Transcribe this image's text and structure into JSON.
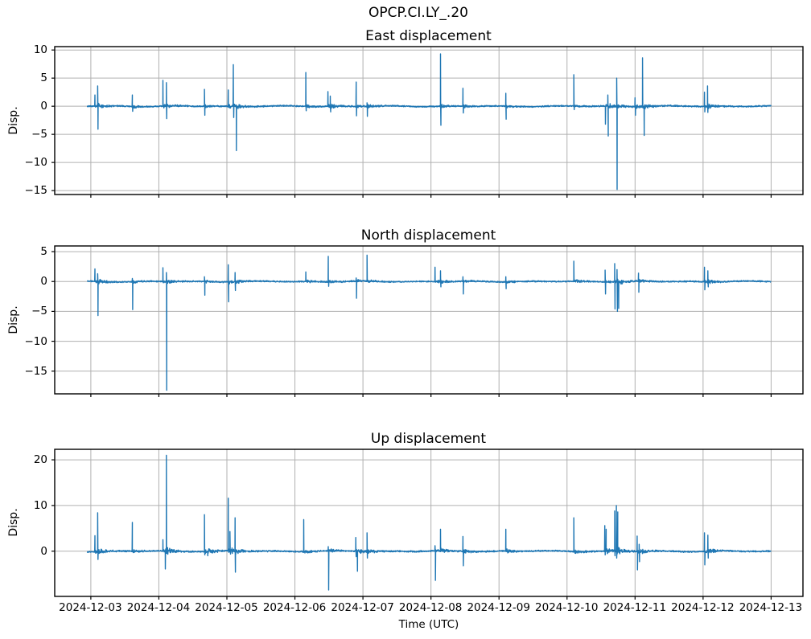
{
  "figure": {
    "suptitle": "OPCP.CI.LY_.20",
    "xlabel": "Time (UTC)",
    "background_color": "#ffffff",
    "line_color": "#1f77b4",
    "grid_color": "#b0b0b0",
    "frame_color": "#000000",
    "text_color": "#000000"
  },
  "x_axis": {
    "label": "Time (UTC)",
    "tick_labels": [
      "2024-12-03",
      "2024-12-04",
      "2024-12-05",
      "2024-12-06",
      "2024-12-07",
      "2024-12-08",
      "2024-12-09",
      "2024-12-10",
      "2024-12-11",
      "2024-12-12",
      "2024-12-13"
    ],
    "tick_days": [
      0,
      1,
      2,
      3,
      4,
      5,
      6,
      7,
      8,
      9,
      10
    ]
  },
  "chart_data": [
    {
      "type": "line",
      "title": "East displacement",
      "ylabel": "Disp.",
      "x_unit": "days since 2024-12-03 00:00 UTC",
      "x_start_day": -0.055,
      "x_end_day": 10.0,
      "xlim": [
        -0.531,
        10.468
      ],
      "ylim": [
        -15.7,
        10.6
      ],
      "yticks": [
        {
          "v": 10,
          "label": "10"
        },
        {
          "v": 5,
          "label": "5"
        },
        {
          "v": 0,
          "label": "0"
        },
        {
          "v": -5,
          "label": "−5"
        },
        {
          "v": -10,
          "label": "−10"
        },
        {
          "v": -15,
          "label": "−15"
        }
      ],
      "noise_amp": 0.13,
      "seed": 3,
      "spikes": [
        [
          0.06,
          2.0,
          0
        ],
        [
          0.1,
          3.6,
          -4.1
        ],
        [
          0.61,
          2.0,
          -0.9
        ],
        [
          1.06,
          4.6,
          0
        ],
        [
          1.11,
          4.2,
          -2.2
        ],
        [
          1.67,
          3.0,
          -1.6
        ],
        [
          2.02,
          2.9,
          0
        ],
        [
          2.095,
          7.4,
          -2.0
        ],
        [
          2.14,
          0,
          -7.9
        ],
        [
          3.16,
          6.0,
          -0.8
        ],
        [
          3.485,
          2.6,
          0
        ],
        [
          3.52,
          1.8,
          -1.0
        ],
        [
          3.9,
          4.3,
          -1.7
        ],
        [
          4.06,
          0.6,
          -1.8
        ],
        [
          5.14,
          9.3,
          -3.4
        ],
        [
          5.47,
          3.2,
          -1.2
        ],
        [
          6.1,
          2.3,
          -2.3
        ],
        [
          7.1,
          5.6,
          -0.6
        ],
        [
          7.565,
          0,
          -3.2
        ],
        [
          7.6,
          2.0,
          -5.3
        ],
        [
          7.73,
          5.0,
          -14.8
        ],
        [
          8.0,
          1.5,
          -1.6
        ],
        [
          8.11,
          8.6,
          0
        ],
        [
          8.135,
          0,
          -5.2
        ],
        [
          9.02,
          2.5,
          -1.0
        ],
        [
          9.065,
          3.6,
          -1.1
        ]
      ]
    },
    {
      "type": "line",
      "title": "North displacement",
      "ylabel": "Disp.",
      "x_unit": "days since 2024-12-03 00:00 UTC",
      "x_start_day": -0.055,
      "x_end_day": 10.0,
      "xlim": [
        -0.531,
        10.468
      ],
      "ylim": [
        -18.8,
        5.95
      ],
      "yticks": [
        {
          "v": 5,
          "label": "5"
        },
        {
          "v": 0,
          "label": "0"
        },
        {
          "v": -5,
          "label": "−5"
        },
        {
          "v": -10,
          "label": "−10"
        },
        {
          "v": -15,
          "label": "−15"
        }
      ],
      "noise_amp": 0.12,
      "seed": 11,
      "spikes": [
        [
          0.06,
          2.1,
          0
        ],
        [
          0.1,
          1.3,
          -5.7
        ],
        [
          0.61,
          0.5,
          -4.7
        ],
        [
          1.06,
          2.3,
          0
        ],
        [
          1.11,
          1.5,
          -18.2
        ],
        [
          1.67,
          0.8,
          -2.3
        ],
        [
          2.02,
          2.8,
          -3.4
        ],
        [
          2.12,
          1.5,
          -1.5
        ],
        [
          3.16,
          1.6,
          0
        ],
        [
          3.49,
          4.2,
          -0.8
        ],
        [
          3.9,
          0.6,
          -2.8
        ],
        [
          4.06,
          4.4,
          0
        ],
        [
          5.06,
          2.4,
          0
        ],
        [
          5.14,
          1.8,
          -0.9
        ],
        [
          5.47,
          0.8,
          -2.1
        ],
        [
          6.1,
          0.8,
          -1.2
        ],
        [
          7.1,
          3.4,
          0
        ],
        [
          7.56,
          1.9,
          -2.1
        ],
        [
          7.7,
          3.0,
          -4.6
        ],
        [
          7.735,
          2.0,
          -5.0
        ],
        [
          7.76,
          0,
          -4.5
        ],
        [
          8.05,
          1.4,
          -1.8
        ],
        [
          9.02,
          2.4,
          -1.4
        ],
        [
          9.07,
          1.8,
          -0.9
        ]
      ]
    },
    {
      "type": "line",
      "title": "Up displacement",
      "ylabel": "Disp.",
      "x_unit": "days since 2024-12-03 00:00 UTC",
      "x_start_day": -0.055,
      "x_end_day": 10.0,
      "xlim": [
        -0.531,
        10.468
      ],
      "ylim": [
        -9.9,
        22.3
      ],
      "yticks": [
        {
          "v": 20,
          "label": "20"
        },
        {
          "v": 10,
          "label": "10"
        },
        {
          "v": 0,
          "label": "0"
        }
      ],
      "noise_amp": 0.18,
      "seed": 27,
      "spikes": [
        [
          0.06,
          3.4,
          0
        ],
        [
          0.1,
          8.4,
          -1.8
        ],
        [
          0.61,
          6.3,
          0
        ],
        [
          1.06,
          2.5,
          0
        ],
        [
          1.095,
          0,
          -3.9
        ],
        [
          1.11,
          21.0,
          0
        ],
        [
          1.67,
          8.0,
          -0.8
        ],
        [
          1.72,
          0,
          -1.0
        ],
        [
          2.02,
          11.6,
          0
        ],
        [
          2.045,
          4.3,
          0
        ],
        [
          2.12,
          7.3,
          -4.6
        ],
        [
          3.13,
          6.9,
          0
        ],
        [
          3.49,
          1.0,
          -8.5
        ],
        [
          3.895,
          3.0,
          -1.2
        ],
        [
          3.92,
          0,
          -4.4
        ],
        [
          4.06,
          4.0,
          -1.5
        ],
        [
          5.06,
          1.2,
          -6.4
        ],
        [
          5.14,
          4.8,
          0
        ],
        [
          5.47,
          3.2,
          -3.2
        ],
        [
          6.1,
          4.8,
          0
        ],
        [
          7.1,
          7.3,
          0
        ],
        [
          7.555,
          5.6,
          -0.8
        ],
        [
          7.575,
          4.8,
          0
        ],
        [
          7.7,
          8.8,
          -1.0
        ],
        [
          7.725,
          10.0,
          -1.5
        ],
        [
          7.745,
          8.6,
          0
        ],
        [
          8.03,
          3.3,
          -4.1
        ],
        [
          8.06,
          1.5,
          -2.3
        ],
        [
          9.02,
          4.0,
          -3.0
        ],
        [
          9.07,
          3.5,
          -1.5
        ]
      ]
    }
  ]
}
